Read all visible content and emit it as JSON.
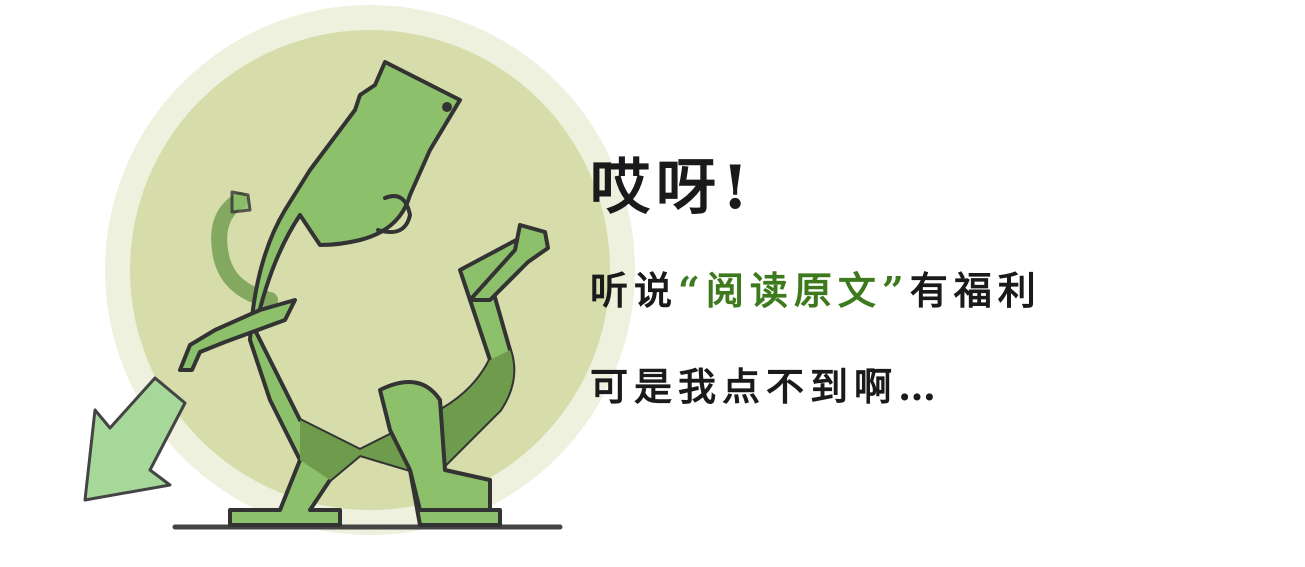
{
  "message": {
    "line1": "哎呀!",
    "line2_prefix": "听说",
    "line2_highlight": "“阅读原文”",
    "line2_suffix": "有福利",
    "line3": "可是我点不到啊…"
  },
  "colors": {
    "circle_outer": "#eef1dd",
    "circle_inner": "#d6dcaa",
    "dino_light": "#8cc06a",
    "dino_dark": "#6e9b4c",
    "outline": "#333333",
    "arrow": "#a6d89a",
    "highlight_text": "#3d7a1e",
    "ground": "#444444"
  },
  "icons": {
    "character": "green-dinosaur-illustration",
    "arrow": "down-left-arrow-icon"
  }
}
